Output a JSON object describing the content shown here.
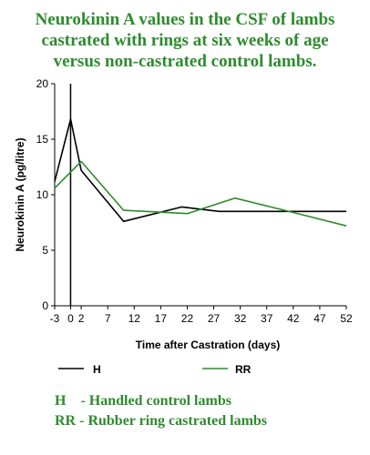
{
  "title_lines": [
    "Neurokinin A values in the CSF of lambs",
    "castrated with rings at six weeks of age",
    "versus non-castrated control lambs."
  ],
  "notes": [
    "H    - Handled control lambs",
    "RR - Rubber ring castrated lambs"
  ],
  "colors": {
    "title": "#2e8b2e",
    "series_H": "#000000",
    "series_RR": "#2e8b2e"
  },
  "chart_data": {
    "type": "line",
    "title": "Neurokinin A values in the CSF of lambs castrated with rings at six weeks of age versus non-castrated control lambs.",
    "xlabel": "Time after Castration (days)",
    "ylabel": "Neurokinin A (pg/litre)",
    "xlim": [
      -3,
      52
    ],
    "ylim": [
      0,
      20
    ],
    "x_ticks": [
      -3,
      0,
      2,
      7,
      12,
      17,
      22,
      27,
      32,
      37,
      42,
      47,
      52
    ],
    "x_tick_labels": [
      "-3",
      "0",
      "2",
      "7",
      "12",
      "17",
      "22",
      "27",
      "32",
      "37",
      "42",
      "47",
      "52"
    ],
    "y_ticks": [
      0,
      5,
      10,
      15,
      20
    ],
    "y_tick_labels": [
      "0",
      "5",
      "10",
      "15",
      "20"
    ],
    "vertical_line_x": 0,
    "grid": false,
    "legend_position": "bottom",
    "series": [
      {
        "name": "H",
        "color": "#000000",
        "points": [
          {
            "x": -3,
            "y": 11.2
          },
          {
            "x": 0,
            "y": 16.8
          },
          {
            "x": 2,
            "y": 12.2
          },
          {
            "x": 10,
            "y": 7.6
          },
          {
            "x": 21,
            "y": 8.9
          },
          {
            "x": 28,
            "y": 8.5
          },
          {
            "x": 52,
            "y": 8.5
          }
        ]
      },
      {
        "name": "RR",
        "color": "#2e8b2e",
        "points": [
          {
            "x": -3,
            "y": 10.6
          },
          {
            "x": 2,
            "y": 13.0
          },
          {
            "x": 10,
            "y": 8.6
          },
          {
            "x": 22,
            "y": 8.3
          },
          {
            "x": 31,
            "y": 9.7
          },
          {
            "x": 42,
            "y": 8.4
          },
          {
            "x": 52,
            "y": 7.2
          }
        ]
      }
    ]
  }
}
